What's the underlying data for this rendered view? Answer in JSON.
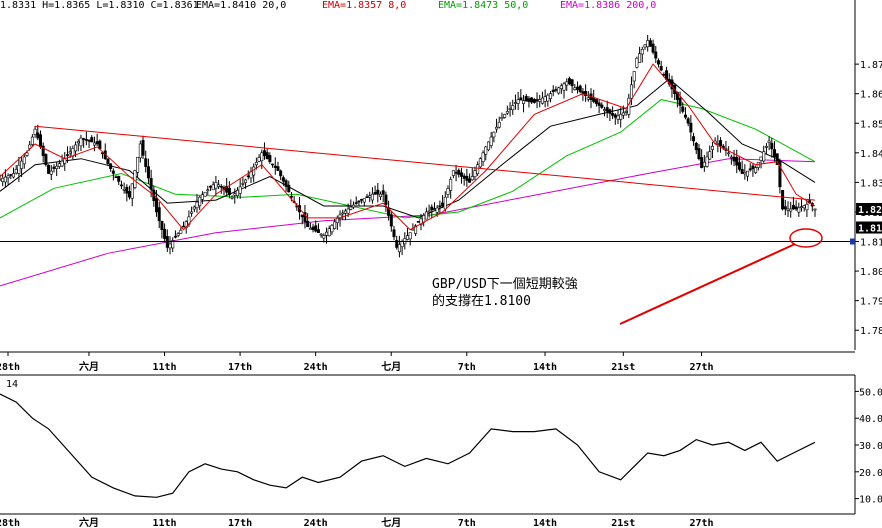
{
  "header": {
    "ohlc": "1.8331 H=1.8365 L=1.8310 C=1.8361",
    "ema20": "EMA=1.8410 20,0",
    "ema8": "EMA=1.8357 8,0",
    "ema50": "EMA=1.8473 50,0",
    "ema200": "EMA=1.8386 200,0"
  },
  "price_panel": {
    "y_ticks": [
      "1.87",
      "1.86",
      "1.85",
      "1.84",
      "1.83",
      "1.82",
      "1.81",
      "1.80",
      "1.79",
      "1.78"
    ],
    "last_price_label": "1.82",
    "support_label": "1.81"
  },
  "x_ticks": [
    "28th",
    "六月",
    "11th",
    "17th",
    "24th",
    "七月",
    "7th",
    "14th",
    "21st",
    "27th"
  ],
  "annotation": {
    "line1": "GBP/USD下一個短期較強",
    "line2": "的支撐在1.8100"
  },
  "indicator_panel": {
    "label": "14",
    "y_ticks": [
      "50.0",
      "40.0",
      "30.0",
      "20.0",
      "10.0"
    ]
  },
  "colors": {
    "candle": "#000000",
    "ema8": "#e00000",
    "ema20": "#000000",
    "ema50": "#00c000",
    "ema200": "#cc00cc",
    "trendline": "#e00000",
    "support": "#000000",
    "highlight": "#e00000",
    "hdr_ohlc": "#000000",
    "hdr_ema20": "#000000",
    "hdr_ema8": "#cc0000",
    "hdr_ema50": "#00a000",
    "hdr_ema200": "#cc00cc"
  },
  "chart_data": {
    "type": "line",
    "symbol": "GBP/USD",
    "price_ylim": [
      1.775,
      1.89
    ],
    "x_tick_labels": [
      "28th",
      "六月",
      "11th",
      "17th",
      "24th",
      "七月",
      "7th",
      "14th",
      "21st",
      "27th"
    ],
    "close_series": [
      {
        "x": 0,
        "y": 1.831
      },
      {
        "x": 5,
        "y": 1.833
      },
      {
        "x": 10,
        "y": 1.84
      },
      {
        "x": 13,
        "y": 1.848
      },
      {
        "x": 18,
        "y": 1.833
      },
      {
        "x": 24,
        "y": 1.838
      },
      {
        "x": 30,
        "y": 1.845
      },
      {
        "x": 36,
        "y": 1.843
      },
      {
        "x": 42,
        "y": 1.833
      },
      {
        "x": 48,
        "y": 1.825
      },
      {
        "x": 52,
        "y": 1.843
      },
      {
        "x": 58,
        "y": 1.82
      },
      {
        "x": 62,
        "y": 1.808
      },
      {
        "x": 68,
        "y": 1.815
      },
      {
        "x": 74,
        "y": 1.825
      },
      {
        "x": 80,
        "y": 1.83
      },
      {
        "x": 86,
        "y": 1.825
      },
      {
        "x": 92,
        "y": 1.832
      },
      {
        "x": 97,
        "y": 1.84
      },
      {
        "x": 103,
        "y": 1.834
      },
      {
        "x": 108,
        "y": 1.825
      },
      {
        "x": 114,
        "y": 1.815
      },
      {
        "x": 120,
        "y": 1.812
      },
      {
        "x": 126,
        "y": 1.819
      },
      {
        "x": 132,
        "y": 1.823
      },
      {
        "x": 138,
        "y": 1.826
      },
      {
        "x": 142,
        "y": 1.826
      },
      {
        "x": 147,
        "y": 1.808
      },
      {
        "x": 152,
        "y": 1.813
      },
      {
        "x": 158,
        "y": 1.82
      },
      {
        "x": 164,
        "y": 1.822
      },
      {
        "x": 168,
        "y": 1.834
      },
      {
        "x": 174,
        "y": 1.83
      },
      {
        "x": 180,
        "y": 1.842
      },
      {
        "x": 186,
        "y": 1.852
      },
      {
        "x": 192,
        "y": 1.858
      },
      {
        "x": 198,
        "y": 1.857
      },
      {
        "x": 204,
        "y": 1.86
      },
      {
        "x": 210,
        "y": 1.864
      },
      {
        "x": 216,
        "y": 1.86
      },
      {
        "x": 222,
        "y": 1.856
      },
      {
        "x": 228,
        "y": 1.852
      },
      {
        "x": 232,
        "y": 1.854
      },
      {
        "x": 236,
        "y": 1.872
      },
      {
        "x": 240,
        "y": 1.878
      },
      {
        "x": 245,
        "y": 1.868
      },
      {
        "x": 250,
        "y": 1.86
      },
      {
        "x": 255,
        "y": 1.85
      },
      {
        "x": 260,
        "y": 1.835
      },
      {
        "x": 265,
        "y": 1.844
      },
      {
        "x": 270,
        "y": 1.84
      },
      {
        "x": 275,
        "y": 1.833
      },
      {
        "x": 280,
        "y": 1.835
      },
      {
        "x": 285,
        "y": 1.844
      },
      {
        "x": 288,
        "y": 1.836
      },
      {
        "x": 290,
        "y": 1.821
      },
      {
        "x": 295,
        "y": 1.821
      },
      {
        "x": 300,
        "y": 1.823
      },
      {
        "x": 302,
        "y": 1.821
      }
    ],
    "series": [
      {
        "name": "EMA 8,0",
        "points": [
          {
            "x": 0,
            "y": 1.832
          },
          {
            "x": 13,
            "y": 1.843
          },
          {
            "x": 24,
            "y": 1.838
          },
          {
            "x": 36,
            "y": 1.842
          },
          {
            "x": 48,
            "y": 1.832
          },
          {
            "x": 58,
            "y": 1.825
          },
          {
            "x": 68,
            "y": 1.814
          },
          {
            "x": 80,
            "y": 1.826
          },
          {
            "x": 97,
            "y": 1.836
          },
          {
            "x": 114,
            "y": 1.818
          },
          {
            "x": 126,
            "y": 1.818
          },
          {
            "x": 142,
            "y": 1.823
          },
          {
            "x": 152,
            "y": 1.814
          },
          {
            "x": 164,
            "y": 1.82
          },
          {
            "x": 180,
            "y": 1.834
          },
          {
            "x": 198,
            "y": 1.853
          },
          {
            "x": 216,
            "y": 1.86
          },
          {
            "x": 232,
            "y": 1.855
          },
          {
            "x": 242,
            "y": 1.87
          },
          {
            "x": 255,
            "y": 1.856
          },
          {
            "x": 265,
            "y": 1.843
          },
          {
            "x": 280,
            "y": 1.836
          },
          {
            "x": 288,
            "y": 1.837
          },
          {
            "x": 295,
            "y": 1.826
          },
          {
            "x": 302,
            "y": 1.822
          }
        ]
      },
      {
        "name": "EMA 20,0",
        "points": [
          {
            "x": 0,
            "y": 1.827
          },
          {
            "x": 13,
            "y": 1.836
          },
          {
            "x": 30,
            "y": 1.838
          },
          {
            "x": 48,
            "y": 1.834
          },
          {
            "x": 62,
            "y": 1.823
          },
          {
            "x": 80,
            "y": 1.824
          },
          {
            "x": 100,
            "y": 1.832
          },
          {
            "x": 120,
            "y": 1.822
          },
          {
            "x": 142,
            "y": 1.822
          },
          {
            "x": 155,
            "y": 1.818
          },
          {
            "x": 170,
            "y": 1.824
          },
          {
            "x": 186,
            "y": 1.836
          },
          {
            "x": 204,
            "y": 1.849
          },
          {
            "x": 222,
            "y": 1.853
          },
          {
            "x": 236,
            "y": 1.856
          },
          {
            "x": 248,
            "y": 1.865
          },
          {
            "x": 262,
            "y": 1.854
          },
          {
            "x": 275,
            "y": 1.843
          },
          {
            "x": 288,
            "y": 1.838
          },
          {
            "x": 302,
            "y": 1.83
          }
        ]
      },
      {
        "name": "EMA 50,0",
        "points": [
          {
            "x": 0,
            "y": 1.818
          },
          {
            "x": 20,
            "y": 1.828
          },
          {
            "x": 45,
            "y": 1.833
          },
          {
            "x": 65,
            "y": 1.826
          },
          {
            "x": 90,
            "y": 1.825
          },
          {
            "x": 110,
            "y": 1.826
          },
          {
            "x": 130,
            "y": 1.822
          },
          {
            "x": 150,
            "y": 1.818
          },
          {
            "x": 170,
            "y": 1.82
          },
          {
            "x": 190,
            "y": 1.827
          },
          {
            "x": 210,
            "y": 1.839
          },
          {
            "x": 230,
            "y": 1.847
          },
          {
            "x": 245,
            "y": 1.858
          },
          {
            "x": 260,
            "y": 1.855
          },
          {
            "x": 280,
            "y": 1.848
          },
          {
            "x": 302,
            "y": 1.837
          }
        ]
      },
      {
        "name": "EMA 200,0",
        "points": [
          {
            "x": 0,
            "y": 1.795
          },
          {
            "x": 40,
            "y": 1.806
          },
          {
            "x": 80,
            "y": 1.813
          },
          {
            "x": 120,
            "y": 1.817
          },
          {
            "x": 160,
            "y": 1.819
          },
          {
            "x": 200,
            "y": 1.826
          },
          {
            "x": 240,
            "y": 1.833
          },
          {
            "x": 270,
            "y": 1.838
          },
          {
            "x": 302,
            "y": 1.837
          }
        ]
      }
    ],
    "trendline": [
      {
        "x": 13,
        "y": 1.849
      },
      {
        "x": 302,
        "y": 1.824
      }
    ],
    "support_level": 1.81,
    "indicator": {
      "label": "14",
      "ylim": [
        5,
        55
      ],
      "points": [
        {
          "x": 0,
          "y": 49
        },
        {
          "x": 6,
          "y": 46
        },
        {
          "x": 12,
          "y": 40
        },
        {
          "x": 18,
          "y": 36
        },
        {
          "x": 26,
          "y": 27
        },
        {
          "x": 34,
          "y": 18
        },
        {
          "x": 42,
          "y": 14
        },
        {
          "x": 50,
          "y": 11
        },
        {
          "x": 58,
          "y": 10.5
        },
        {
          "x": 64,
          "y": 12
        },
        {
          "x": 70,
          "y": 20
        },
        {
          "x": 76,
          "y": 23
        },
        {
          "x": 82,
          "y": 21
        },
        {
          "x": 88,
          "y": 20
        },
        {
          "x": 94,
          "y": 17
        },
        {
          "x": 100,
          "y": 15
        },
        {
          "x": 106,
          "y": 14
        },
        {
          "x": 112,
          "y": 18
        },
        {
          "x": 118,
          "y": 16
        },
        {
          "x": 126,
          "y": 18
        },
        {
          "x": 134,
          "y": 24
        },
        {
          "x": 142,
          "y": 26
        },
        {
          "x": 150,
          "y": 22
        },
        {
          "x": 158,
          "y": 25
        },
        {
          "x": 166,
          "y": 23
        },
        {
          "x": 174,
          "y": 27
        },
        {
          "x": 182,
          "y": 36
        },
        {
          "x": 190,
          "y": 35
        },
        {
          "x": 198,
          "y": 35
        },
        {
          "x": 206,
          "y": 36
        },
        {
          "x": 214,
          "y": 30
        },
        {
          "x": 222,
          "y": 20
        },
        {
          "x": 230,
          "y": 17
        },
        {
          "x": 234,
          "y": 21
        },
        {
          "x": 240,
          "y": 27
        },
        {
          "x": 246,
          "y": 26
        },
        {
          "x": 252,
          "y": 28
        },
        {
          "x": 258,
          "y": 32
        },
        {
          "x": 264,
          "y": 30
        },
        {
          "x": 270,
          "y": 31
        },
        {
          "x": 276,
          "y": 28
        },
        {
          "x": 282,
          "y": 31
        },
        {
          "x": 288,
          "y": 24
        },
        {
          "x": 294,
          "y": 27
        },
        {
          "x": 302,
          "y": 31
        }
      ]
    }
  }
}
